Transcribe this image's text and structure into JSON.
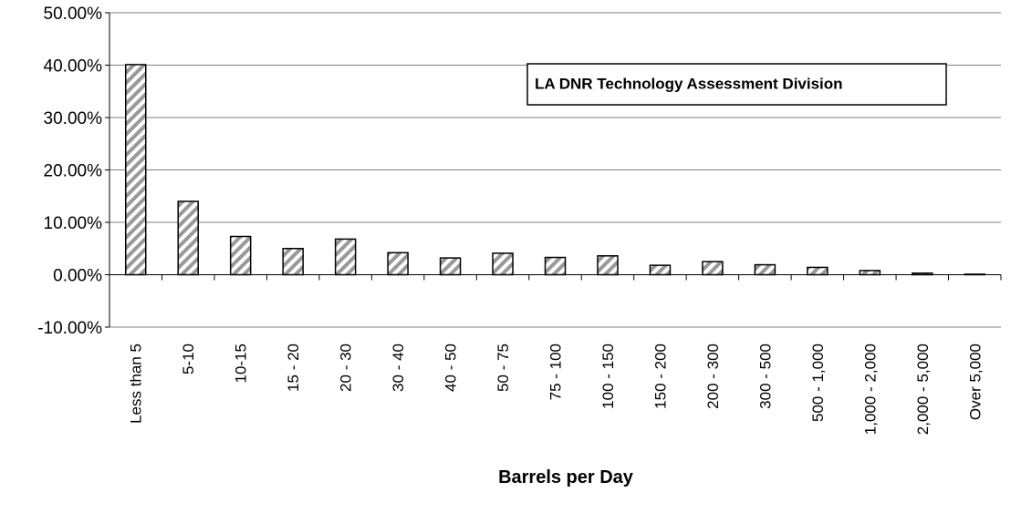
{
  "chart_data": {
    "type": "bar",
    "x_label": "Barrels per Day",
    "annotation": "LA DNR Technology Assessment Division",
    "categories": [
      "Less than 5",
      "5-10",
      "10-15",
      "15 - 20",
      "20 - 30",
      "30 - 40",
      "40 - 50",
      "50 - 75",
      "75 - 100",
      "100 - 150",
      "150 - 200",
      "200 - 300",
      "300 - 500",
      "500 - 1,000",
      "1,000 - 2,000",
      "2,000 - 5,000",
      "Over 5,000"
    ],
    "values": [
      40.1,
      14,
      7.3,
      5,
      6.8,
      4.2,
      3.2,
      4.1,
      3.3,
      3.6,
      1.8,
      2.5,
      1.9,
      1.4,
      0.8,
      0.3,
      0.1
    ],
    "color": "#999999",
    "ylim": [
      -10,
      50
    ],
    "yticks": [
      {
        "value": -10,
        "label": "-10.00%"
      },
      {
        "value": 0,
        "label": "0.00%"
      },
      {
        "value": 10,
        "label": "10.00%"
      },
      {
        "value": 20,
        "label": "20.00%"
      },
      {
        "value": 30,
        "label": "30.00%"
      },
      {
        "value": 40,
        "label": "40.00%"
      },
      {
        "value": 50,
        "label": "50.00%"
      }
    ],
    "grid": true
  }
}
